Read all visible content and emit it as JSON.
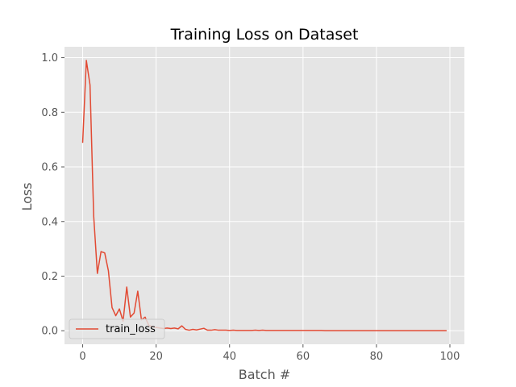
{
  "chart_data": {
    "type": "line",
    "title": "Training Loss on Dataset",
    "xlabel": "Batch #",
    "ylabel": "Loss",
    "xlim": [
      -4.95,
      103.95
    ],
    "ylim": [
      -0.0495,
      1.04
    ],
    "xticks": [
      0,
      20,
      40,
      60,
      80,
      100
    ],
    "yticks": [
      0.0,
      0.2,
      0.4,
      0.6,
      0.8,
      1.0
    ],
    "ytick_labels": [
      "0.0",
      "0.2",
      "0.4",
      "0.6",
      "0.8",
      "1.0"
    ],
    "grid": true,
    "legend_position": "lower-left",
    "background": "#e5e5e5",
    "series": [
      {
        "name": "train_loss",
        "color": "#e24a33",
        "x": [
          0,
          1,
          2,
          3,
          4,
          5,
          6,
          7,
          8,
          9,
          10,
          11,
          12,
          13,
          14,
          15,
          16,
          17,
          18,
          19,
          20,
          21,
          22,
          23,
          24,
          25,
          26,
          27,
          28,
          29,
          30,
          31,
          32,
          33,
          34,
          35,
          36,
          37,
          38,
          39,
          40,
          41,
          42,
          43,
          44,
          45,
          46,
          47,
          48,
          49,
          50,
          51,
          52,
          53,
          54,
          55,
          56,
          57,
          58,
          59,
          60,
          61,
          62,
          63,
          64,
          65,
          66,
          67,
          68,
          69,
          70,
          71,
          72,
          73,
          74,
          75,
          76,
          77,
          78,
          79,
          80,
          81,
          82,
          83,
          84,
          85,
          86,
          87,
          88,
          89,
          90,
          91,
          92,
          93,
          94,
          95,
          96,
          97,
          98,
          99
        ],
        "values": [
          0.69,
          0.99,
          0.9,
          0.42,
          0.21,
          0.29,
          0.285,
          0.22,
          0.085,
          0.055,
          0.08,
          0.035,
          0.16,
          0.05,
          0.065,
          0.145,
          0.04,
          0.05,
          0.02,
          0.015,
          0.012,
          0.01,
          0.008,
          0.01,
          0.008,
          0.01,
          0.007,
          0.018,
          0.005,
          0.002,
          0.005,
          0.003,
          0.006,
          0.009,
          0.002,
          0.002,
          0.004,
          0.002,
          0.002,
          0.002,
          0.001,
          0.002,
          0.001,
          0.001,
          0.001,
          0.001,
          0.001,
          0.002,
          0.001,
          0.002,
          0.001,
          0.001,
          0.001,
          0.001,
          0.001,
          0.001,
          0.001,
          0.001,
          0.001,
          0.001,
          0.001,
          0.001,
          0.001,
          0.001,
          0.001,
          0.001,
          0.0005,
          0.0005,
          0.0005,
          0.0005,
          0.0005,
          0.0005,
          0.0005,
          0.0005,
          0.0005,
          0.0005,
          0.0005,
          0.0005,
          0.0005,
          0.0005,
          0.0005,
          0.0005,
          0.0005,
          0.0005,
          0.0005,
          0.0005,
          0.0005,
          0.0005,
          0.0005,
          0.0005,
          0.0005,
          0.0005,
          0.0005,
          0.0005,
          0.0005,
          0.0005,
          0.0005,
          0.0005,
          0.0005,
          0.0005
        ]
      }
    ]
  }
}
